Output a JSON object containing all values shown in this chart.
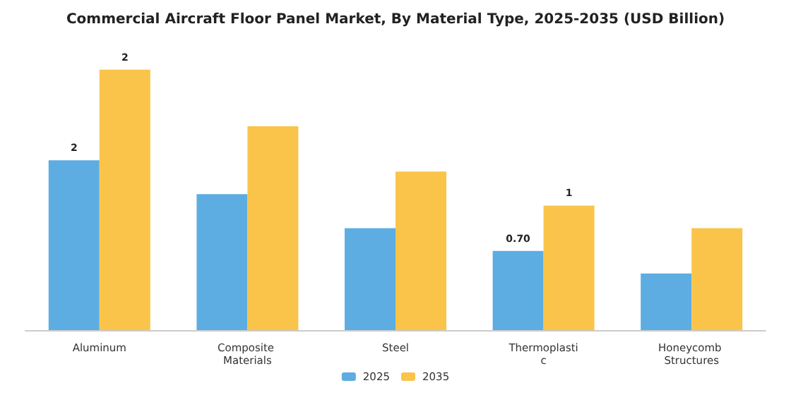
{
  "chart_data": {
    "type": "bar",
    "title": "Commercial Aircraft Floor Panel Market, By Material Type, 2025-2035 (USD Billion)",
    "categories": [
      "Aluminum",
      "Composite Materials",
      "Steel",
      "Thermoplastic",
      "Honeycomb Structures"
    ],
    "legend": "bottom",
    "tick_labels": "x",
    "series": [
      {
        "name": "2025",
        "color": "#5dade2",
        "values": [
          1.5,
          1.2,
          0.9,
          0.7,
          0.5
        ],
        "value_labels": [
          "2",
          null,
          null,
          "0.70",
          null
        ]
      },
      {
        "name": "2035",
        "color": "#f9c449",
        "values": [
          2.3,
          1.8,
          1.4,
          1.1,
          0.9
        ],
        "value_labels": [
          "2",
          null,
          null,
          "1",
          null
        ]
      }
    ]
  }
}
